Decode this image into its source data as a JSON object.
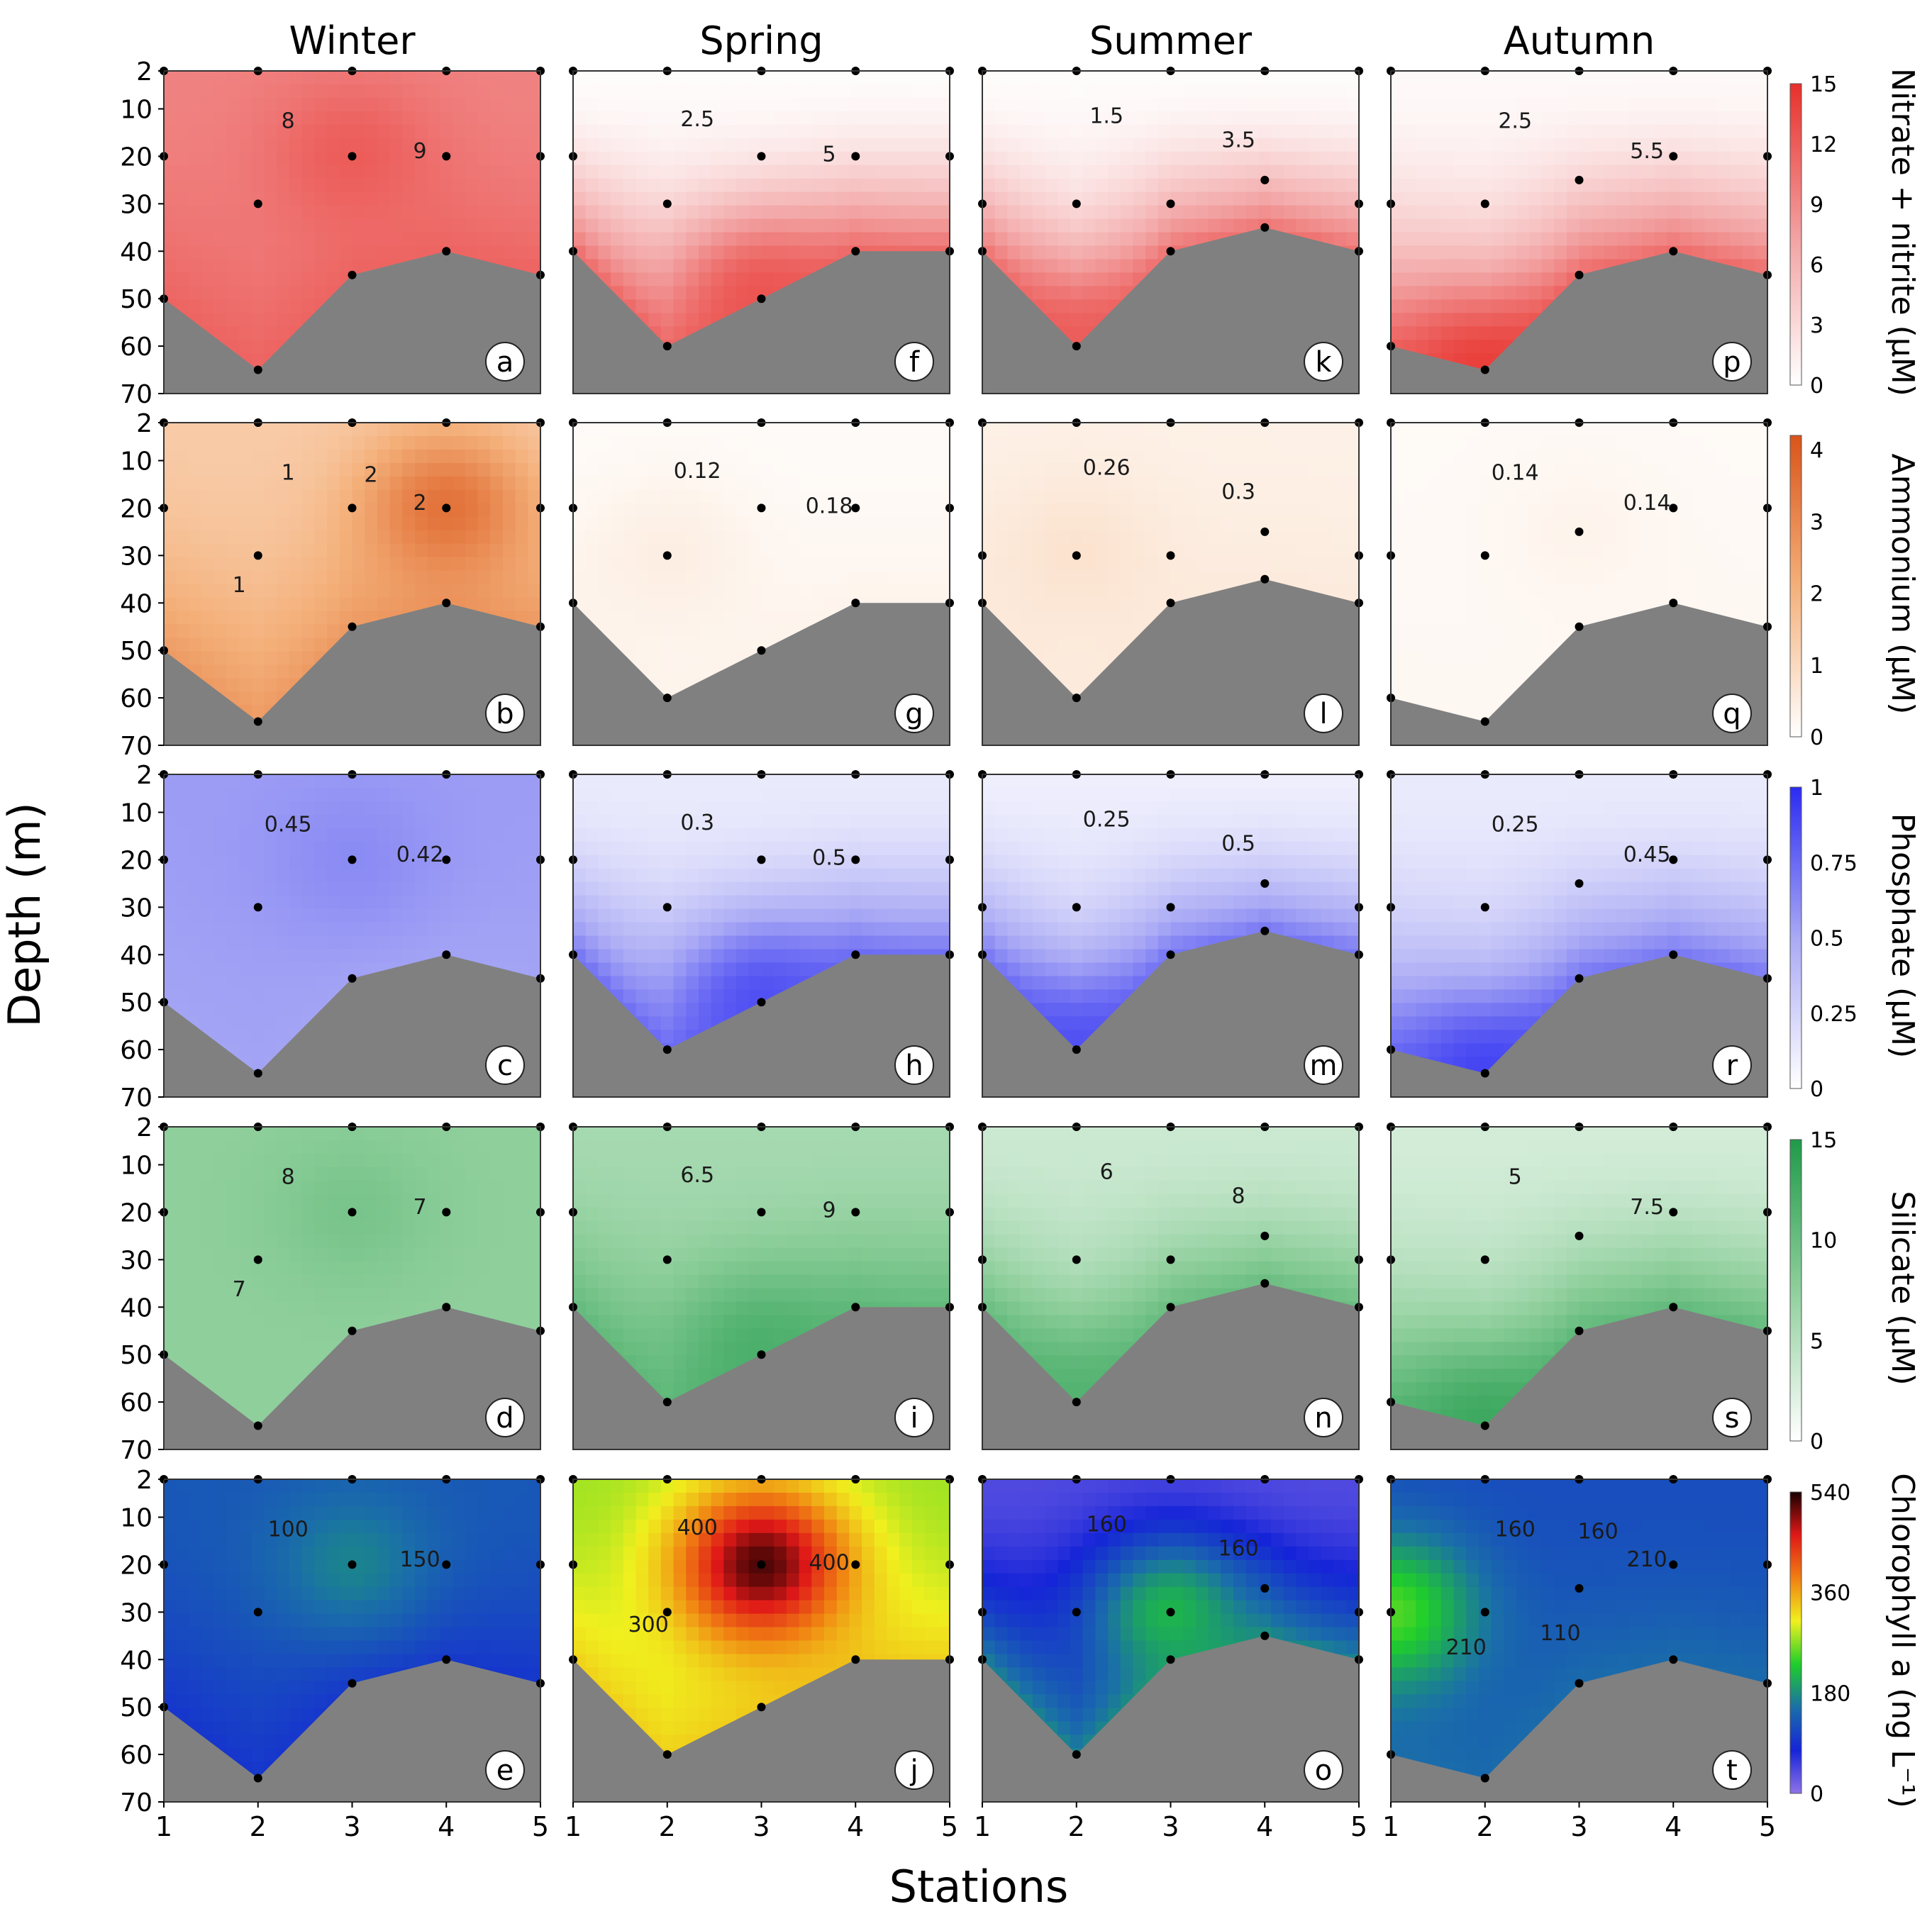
{
  "figure": {
    "x_axis_label": "Stations",
    "y_axis_label": "Depth (m)",
    "colors": {
      "seabed": "#808080",
      "station_dot": "#000000",
      "contour_line": "#1a1a1a"
    }
  },
  "chart_data": {
    "type": "heatmap",
    "kind": "contour panels (20)",
    "seasons": [
      "Winter",
      "Spring",
      "Summer",
      "Autumn"
    ],
    "x_ticks": [
      "1",
      "2",
      "3",
      "4",
      "5"
    ],
    "y_ticks": [
      "2",
      "10",
      "20",
      "30",
      "40",
      "50",
      "60",
      "70"
    ],
    "xlim": [
      1,
      5
    ],
    "ylim": [
      2,
      70
    ],
    "y_inverted": true,
    "bathymetry": [
      [
        [
          1,
          50
        ],
        [
          2,
          65
        ],
        [
          3,
          45
        ],
        [
          4,
          40
        ],
        [
          5,
          45
        ]
      ],
      [
        [
          1,
          40
        ],
        [
          2,
          60
        ],
        [
          3,
          50
        ],
        [
          4,
          40
        ],
        [
          5,
          40
        ]
      ],
      [
        [
          1,
          40
        ],
        [
          2,
          60
        ],
        [
          3,
          40
        ],
        [
          4,
          35
        ],
        [
          5,
          40
        ]
      ],
      [
        [
          1,
          60
        ],
        [
          2,
          65
        ],
        [
          3,
          45
        ],
        [
          4,
          40
        ],
        [
          5,
          45
        ]
      ]
    ],
    "sampling_depths": [
      [
        [
          2,
          20,
          50
        ],
        [
          2,
          30,
          65
        ],
        [
          2,
          20,
          45
        ],
        [
          2,
          20,
          40
        ],
        [
          2,
          20,
          45
        ]
      ],
      [
        [
          2,
          20,
          40
        ],
        [
          2,
          30,
          60
        ],
        [
          2,
          20,
          50
        ],
        [
          2,
          20,
          40
        ],
        [
          2,
          20,
          40
        ]
      ],
      [
        [
          2,
          30,
          40
        ],
        [
          2,
          30,
          60
        ],
        [
          2,
          30,
          40
        ],
        [
          2,
          25,
          35
        ],
        [
          2,
          30,
          40
        ]
      ],
      [
        [
          2,
          30,
          60
        ],
        [
          2,
          30,
          65
        ],
        [
          2,
          25,
          45
        ],
        [
          2,
          20,
          40
        ],
        [
          2,
          20,
          45
        ]
      ]
    ],
    "rows": [
      {
        "variable": "Nitrate + nitrite",
        "unit_label": "Nitrate + nitrite (μM)",
        "colorbar_ticks": [
          "0",
          "3",
          "6",
          "9",
          "12",
          "15"
        ],
        "range": [
          0,
          15
        ],
        "color_stops": [
          "#ffffff",
          "#f2a0a0",
          "#e8302b"
        ],
        "panels": [
          {
            "letter": "a",
            "contour_labels": [
              "8",
              "9"
            ],
            "fields": {
              "surface": 9.5,
              "bottom": 11.5,
              "peak": 12,
              "peak_station": 3,
              "peak_depth": 20
            }
          },
          {
            "letter": "f",
            "contour_labels": [
              "2.5",
              "5"
            ],
            "fields": {
              "surface": 0.3,
              "bottom": 11,
              "peak": 12.5,
              "peak_station": 3,
              "peak_depth": 50
            }
          },
          {
            "letter": "k",
            "contour_labels": [
              "1.5",
              "3.5"
            ],
            "fields": {
              "surface": 0.3,
              "bottom": 10.5,
              "peak": 12,
              "peak_station": 2,
              "peak_depth": 60
            }
          },
          {
            "letter": "p",
            "contour_labels": [
              "2.5",
              "5.5"
            ],
            "fields": {
              "surface": 0.5,
              "bottom": 11,
              "peak": 14,
              "peak_station": 2,
              "peak_depth": 65
            }
          }
        ]
      },
      {
        "variable": "Ammonium",
        "unit_label": "Ammonium (μM)",
        "colorbar_ticks": [
          "0",
          "1",
          "2",
          "3",
          "4"
        ],
        "range": [
          0,
          4.2
        ],
        "color_stops": [
          "#ffffff",
          "#f4b07a",
          "#d9541a"
        ],
        "panels": [
          {
            "letter": "b",
            "contour_labels": [
              "1",
              "2",
              "1",
              "2"
            ],
            "fields": {
              "surface": 1.4,
              "bottom": 2.6,
              "peak": 3.5,
              "peak_station": 4,
              "peak_depth": 20
            }
          },
          {
            "letter": "g",
            "contour_labels": [
              "0.12",
              "0.18"
            ],
            "fields": {
              "surface": 0.12,
              "bottom": 0.3,
              "peak": 0.45,
              "peak_station": 2,
              "peak_depth": 30
            }
          },
          {
            "letter": "l",
            "contour_labels": [
              "0.26",
              "0.3"
            ],
            "fields": {
              "surface": 0.4,
              "bottom": 0.55,
              "peak": 0.75,
              "peak_station": 2,
              "peak_depth": 30
            }
          },
          {
            "letter": "q",
            "contour_labels": [
              "0.14",
              "0.14"
            ],
            "fields": {
              "surface": 0.14,
              "bottom": 0.2,
              "peak": 0.3,
              "peak_station": 3,
              "peak_depth": 25
            }
          }
        ]
      },
      {
        "variable": "Phosphate",
        "unit_label": "Phosphate (μM)",
        "colorbar_ticks": [
          "0",
          "0.25",
          "0.5",
          "0.75",
          "1"
        ],
        "range": [
          0,
          1
        ],
        "color_stops": [
          "#ffffff",
          "#a9a9f5",
          "#2b2bf2"
        ],
        "panels": [
          {
            "letter": "c",
            "contour_labels": [
              "0.45",
              "0.42"
            ],
            "fields": {
              "surface": 0.55,
              "bottom": 0.52,
              "peak": 0.62,
              "peak_station": 3,
              "peak_depth": 20
            }
          },
          {
            "letter": "h",
            "contour_labels": [
              "0.3",
              "0.5"
            ],
            "fields": {
              "surface": 0.12,
              "bottom": 0.72,
              "peak": 0.85,
              "peak_station": 3,
              "peak_depth": 50
            }
          },
          {
            "letter": "m",
            "contour_labels": [
              "0.25",
              "0.5"
            ],
            "fields": {
              "surface": 0.1,
              "bottom": 0.7,
              "peak": 0.85,
              "peak_station": 2,
              "peak_depth": 60
            }
          },
          {
            "letter": "r",
            "contour_labels": [
              "0.25",
              "0.45"
            ],
            "fields": {
              "surface": 0.12,
              "bottom": 0.7,
              "peak": 0.9,
              "peak_station": 2,
              "peak_depth": 65
            }
          }
        ]
      },
      {
        "variable": "Silicate",
        "unit_label": "Silicate (μM)",
        "colorbar_ticks": [
          "0",
          "5",
          "10",
          "15"
        ],
        "range": [
          0,
          15
        ],
        "color_stops": [
          "#ffffff",
          "#8fcf9c",
          "#1f9a4a"
        ],
        "panels": [
          {
            "letter": "d",
            "contour_labels": [
              "8",
              "7",
              "7"
            ],
            "fields": {
              "surface": 7.5,
              "bottom": 7.5,
              "peak": 9,
              "peak_station": 3,
              "peak_depth": 20
            }
          },
          {
            "letter": "i",
            "contour_labels": [
              "6.5",
              "9"
            ],
            "fields": {
              "surface": 6,
              "bottom": 10.5,
              "peak": 12,
              "peak_station": 3,
              "peak_depth": 50
            }
          },
          {
            "letter": "n",
            "contour_labels": [
              "6",
              "8"
            ],
            "fields": {
              "surface": 3.5,
              "bottom": 10,
              "peak": 11.5,
              "peak_station": 2,
              "peak_depth": 60
            }
          },
          {
            "letter": "s",
            "contour_labels": [
              "5",
              "7.5"
            ],
            "fields": {
              "surface": 3,
              "bottom": 10.5,
              "peak": 13,
              "peak_station": 2,
              "peak_depth": 65
            }
          }
        ]
      },
      {
        "variable": "Chlorophyll a",
        "unit_label": "Chlorophyll a (ng L⁻¹)",
        "colorbar_ticks": [
          "0",
          "180",
          "360",
          "540"
        ],
        "range": [
          0,
          540
        ],
        "color_stops": [
          "#8f72e8",
          "#1524d8",
          "#1a6fa8",
          "#1fce2a",
          "#f0f01e",
          "#f07f12",
          "#e01818",
          "#1a0000"
        ],
        "panels": [
          {
            "letter": "e",
            "contour_labels": [
              "100",
              "150"
            ],
            "fields": {
              "surface": 130,
              "bottom": 95,
              "peak": 170,
              "peak_station": 3,
              "peak_depth": 20
            }
          },
          {
            "letter": "j",
            "contour_labels": [
              "400",
              "400",
              "300"
            ],
            "fields": {
              "surface": 280,
              "bottom": 330,
              "peak": 520,
              "peak_station": 3,
              "peak_depth": 20
            }
          },
          {
            "letter": "o",
            "contour_labels": [
              "160",
              "160"
            ],
            "fields": {
              "surface": 40,
              "bottom": 170,
              "peak": 210,
              "peak_station": 3,
              "peak_depth": 30
            }
          },
          {
            "letter": "t",
            "contour_labels": [
              "160",
              "210",
              "210",
              "160",
              "110"
            ],
            "fields": {
              "surface": 120,
              "bottom": 150,
              "peak": 250,
              "peak_station": 1,
              "peak_depth": 30
            }
          }
        ]
      }
    ]
  }
}
